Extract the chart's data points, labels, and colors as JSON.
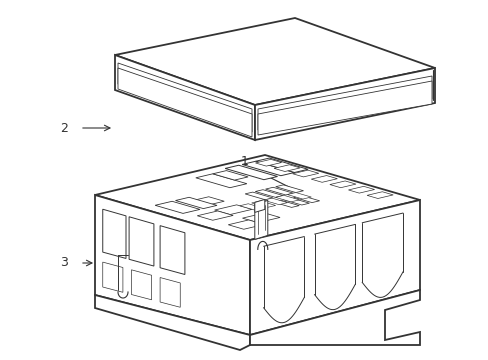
{
  "bg_color": "#ffffff",
  "line_color": "#333333",
  "lw_main": 1.3,
  "lw_detail": 0.7,
  "lw_thin": 0.5,
  "figsize": [
    4.89,
    3.6
  ],
  "dpi": 100
}
